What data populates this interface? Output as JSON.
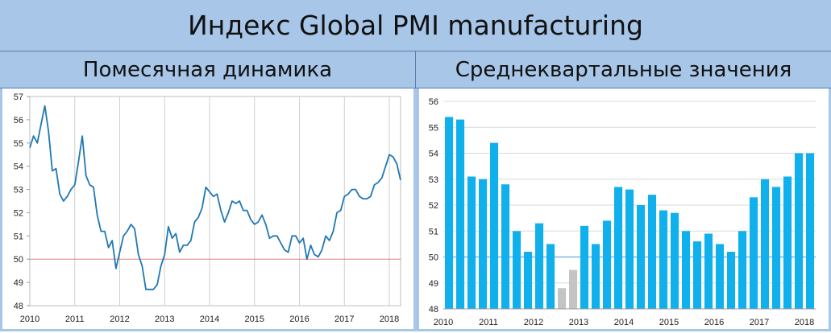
{
  "header": {
    "title": "Индекс Global PMI manufacturing",
    "left_subtitle": "Помесячная динамика",
    "right_subtitle": "Среднеквартальные значения"
  },
  "chart_data": [
    {
      "type": "line",
      "y_range": [
        48,
        57
      ],
      "y_ticks": [
        "48",
        "49",
        "50",
        "51",
        "52",
        "53",
        "54",
        "55",
        "56",
        "57"
      ],
      "x_ticks": [
        "2010",
        "2011",
        "2012",
        "2013",
        "2014",
        "2015",
        "2016",
        "2017",
        "2018"
      ],
      "x_start": "2010-01",
      "grid": "vertical lines at year starts",
      "reference_line": {
        "y": 50,
        "color": "#e08080"
      },
      "series": [
        {
          "color": "#1f78b4",
          "values": [
            54.8,
            55.3,
            55.0,
            55.8,
            56.6,
            55.5,
            53.8,
            53.9,
            52.8,
            52.5,
            52.7,
            53.0,
            53.2,
            54.2,
            55.3,
            53.6,
            53.2,
            53.1,
            51.9,
            51.2,
            51.2,
            50.5,
            50.8,
            49.6,
            50.3,
            51.0,
            51.2,
            51.5,
            51.3,
            50.2,
            49.7,
            48.7,
            48.7,
            48.7,
            48.9,
            49.7,
            50.2,
            51.4,
            50.9,
            51.1,
            50.3,
            50.6,
            50.6,
            50.8,
            51.6,
            51.8,
            52.2,
            53.1,
            52.9,
            52.7,
            52.8,
            52.1,
            51.6,
            52.0,
            52.5,
            52.4,
            52.5,
            52.1,
            52.1,
            51.7,
            51.5,
            51.6,
            51.9,
            51.5,
            50.9,
            51.0,
            51.0,
            50.7,
            50.4,
            50.3,
            51.0,
            51.0,
            50.7,
            50.9,
            50.0,
            50.6,
            50.2,
            50.1,
            50.4,
            51.0,
            50.8,
            51.2,
            52.0,
            52.1,
            52.7,
            52.8,
            53.0,
            53.0,
            52.7,
            52.6,
            52.6,
            52.7,
            53.2,
            53.3,
            53.5,
            54.0,
            54.5,
            54.4,
            54.1,
            53.4
          ]
        }
      ]
    },
    {
      "type": "bar",
      "y_range": [
        48,
        56
      ],
      "y_ticks": [
        "48",
        "49",
        "50",
        "51",
        "52",
        "53",
        "54",
        "55",
        "56"
      ],
      "x_ticks": [
        "2010",
        "2011",
        "2012",
        "2013",
        "2014",
        "2015",
        "2016",
        "2017",
        "2018"
      ],
      "grid": "horizontal",
      "reference_line": {
        "y": 50,
        "color": "#7fb3e6"
      },
      "colors": {
        "above_50": "#0fb0ec",
        "below_50": "#c4c4c4"
      },
      "series": [
        {
          "values": [
            55.4,
            55.3,
            53.1,
            53.0,
            54.4,
            52.8,
            51.0,
            50.2,
            51.3,
            50.5,
            48.8,
            49.5,
            51.2,
            50.5,
            51.4,
            52.7,
            52.6,
            52.0,
            52.4,
            51.8,
            51.7,
            51.0,
            50.6,
            50.9,
            50.5,
            50.2,
            51.0,
            52.3,
            53.0,
            52.7,
            53.1,
            54.0,
            54.0
          ]
        }
      ]
    }
  ]
}
